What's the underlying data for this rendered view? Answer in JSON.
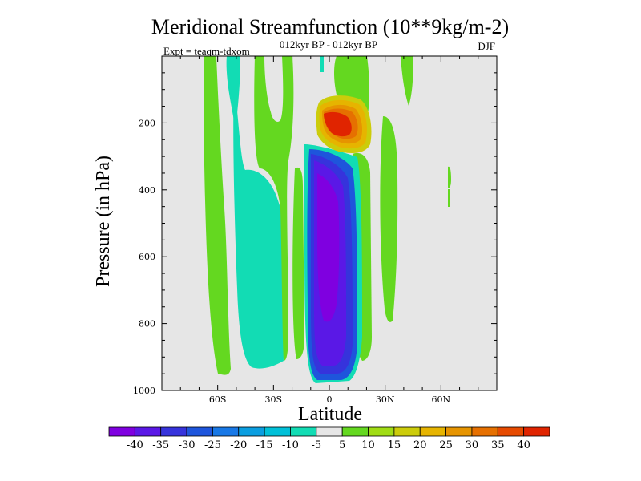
{
  "chart_data": {
    "type": "heatmap",
    "title": "Meridional Streamfunction (10**9kg/m-2)",
    "subtitle": "012kyr BP - 012kyr BP",
    "left_label": "Expt = teaqm-tdxom",
    "right_label": "DJF",
    "xlabel": "Latitude",
    "ylabel": "Pressure (in hPa)",
    "xlim": [
      -90,
      90
    ],
    "ylim": [
      1000,
      0
    ],
    "x_ticks": [
      {
        "value": -60,
        "label": "60S"
      },
      {
        "value": -30,
        "label": "30S"
      },
      {
        "value": 0,
        "label": "0"
      },
      {
        "value": 30,
        "label": "30N"
      },
      {
        "value": 60,
        "label": "60N"
      }
    ],
    "y_ticks": [
      {
        "value": 200,
        "label": "200"
      },
      {
        "value": 400,
        "label": "400"
      },
      {
        "value": 600,
        "label": "600"
      },
      {
        "value": 800,
        "label": "800"
      },
      {
        "value": 1000,
        "label": "1000"
      }
    ],
    "colorbar": {
      "labels": [
        "-40",
        "-35",
        "-30",
        "-25",
        "-20",
        "-15",
        "-10",
        "-5",
        "5",
        "10",
        "15",
        "20",
        "25",
        "30",
        "35",
        "40"
      ],
      "colors": [
        "#7f00e0",
        "#5a18e6",
        "#3633dc",
        "#1e55dc",
        "#1878e6",
        "#0a9ee0",
        "#00c0d8",
        "#12dcb4",
        "#e6e6e6",
        "#64d820",
        "#a0dc14",
        "#cccc0a",
        "#e6b400",
        "#e69400",
        "#e67000",
        "#e64a00",
        "#e02400"
      ]
    },
    "field": {
      "background_value": 0,
      "features": [
        {
          "sign": "positive",
          "center_lat": 3,
          "center_pressure": 195,
          "peak": 42
        },
        {
          "sign": "negative",
          "center_lat": -2,
          "center_pressure": 540,
          "peak": -42
        },
        {
          "sign": "positive",
          "center_lat": 27,
          "center_pressure": 360,
          "peak": 13
        },
        {
          "sign": "negative",
          "center_lat": -45,
          "center_pressure": 500,
          "peak": -10
        }
      ]
    }
  }
}
